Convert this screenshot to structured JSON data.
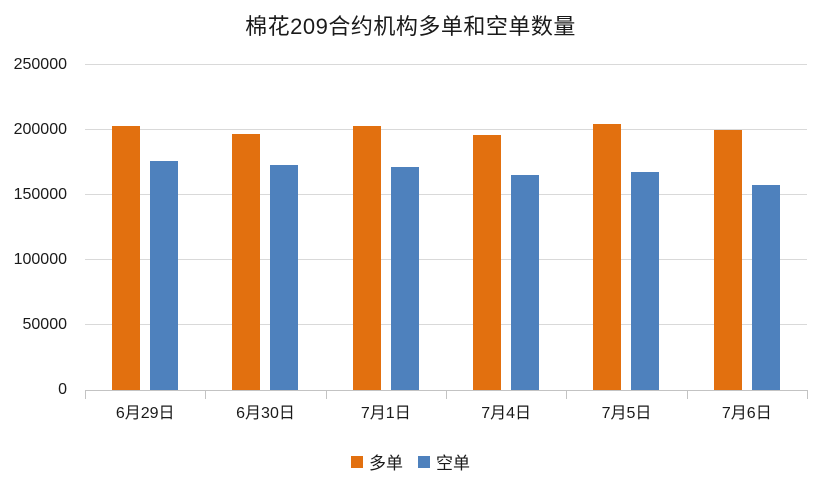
{
  "chart_data": {
    "type": "bar",
    "title": "棉花209合约机构多单和空单数量",
    "categories": [
      "6月29日",
      "6月30日",
      "7月1日",
      "7月4日",
      "7月5日",
      "7月6日"
    ],
    "series": [
      {
        "key": "long",
        "name": "多单",
        "color": "#e2700f",
        "values": [
          203000,
          197000,
          203000,
          196500,
          204500,
          200000
        ]
      },
      {
        "key": "short",
        "name": "空单",
        "color": "#4e81bd",
        "values": [
          176000,
          173000,
          171500,
          165500,
          167500,
          158000
        ]
      }
    ],
    "ylim": [
      0,
      250000
    ],
    "ytick_step": 50000,
    "yticks": [
      "0",
      "50000",
      "100000",
      "150000",
      "200000",
      "250000"
    ],
    "grid": true,
    "gridline_color": "#d9d9d9",
    "axis_color": "#c3c3c3",
    "legend_position": "bottom"
  }
}
